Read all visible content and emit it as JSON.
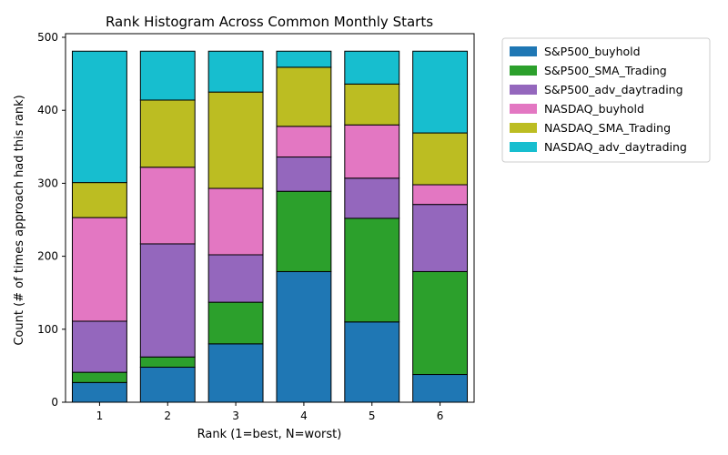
{
  "chart_data": {
    "type": "bar",
    "stacked": true,
    "title": "Rank Histogram Across Common Monthly Starts",
    "xlabel": "Rank (1=best, N=worst)",
    "ylabel": "Count (# of times approach had this rank)",
    "categories": [
      "1",
      "2",
      "3",
      "4",
      "5",
      "6"
    ],
    "ylim": [
      0,
      505
    ],
    "yticks": [
      0,
      100,
      200,
      300,
      400,
      500
    ],
    "grid": false,
    "legend_position": "outside-right",
    "series": [
      {
        "name": "S&P500_buyhold",
        "color": "#1f77b4",
        "values": [
          27,
          48,
          80,
          179,
          110,
          38
        ]
      },
      {
        "name": "S&P500_SMA_Trading",
        "color": "#2ca02c",
        "values": [
          14,
          14,
          57,
          110,
          142,
          141
        ]
      },
      {
        "name": "S&P500_adv_daytrading",
        "color": "#9467bd",
        "values": [
          70,
          155,
          65,
          47,
          55,
          92
        ]
      },
      {
        "name": "NASDAQ_buyhold",
        "color": "#e377c2",
        "values": [
          142,
          105,
          91,
          42,
          73,
          27
        ]
      },
      {
        "name": "NASDAQ_SMA_Trading",
        "color": "#bcbd22",
        "values": [
          48,
          92,
          132,
          81,
          56,
          71
        ]
      },
      {
        "name": "NASDAQ_adv_daytrading",
        "color": "#17becf",
        "values": [
          180,
          67,
          56,
          22,
          45,
          112
        ]
      }
    ]
  }
}
